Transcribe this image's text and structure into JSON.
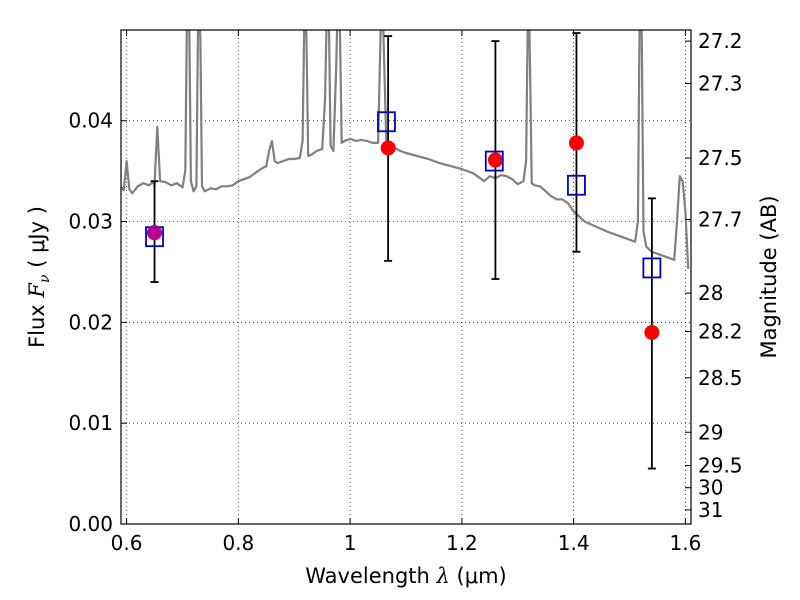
{
  "chart_data": {
    "type": "scatter",
    "xlabel": {
      "prefix": "Wavelength",
      "symbol": "λ",
      "unit": "(μm)"
    },
    "ylabel": {
      "prefix": "Flux",
      "symbol": "F",
      "subscript": "ν",
      "unit": "( μJy )"
    },
    "y2label": "Magnitude (AB)",
    "xlim": [
      0.59,
      1.61
    ],
    "ylim": [
      0.0,
      0.049
    ],
    "xticks": [
      {
        "value": 0.6,
        "label": "0.6"
      },
      {
        "value": 0.8,
        "label": "0.8"
      },
      {
        "value": 1.0,
        "label": "1"
      },
      {
        "value": 1.2,
        "label": "1.2"
      },
      {
        "value": 1.4,
        "label": "1.4"
      },
      {
        "value": 1.6,
        "label": "1.6"
      }
    ],
    "yticks": [
      {
        "value": 0.0,
        "label": "0.00"
      },
      {
        "value": 0.01,
        "label": "0.01"
      },
      {
        "value": 0.02,
        "label": "0.02"
      },
      {
        "value": 0.03,
        "label": "0.03"
      },
      {
        "value": 0.04,
        "label": "0.04"
      }
    ],
    "magnitude_ticks": [
      {
        "flux": 0.0479,
        "label": "27.2"
      },
      {
        "flux": 0.0437,
        "label": "27.3"
      },
      {
        "flux": 0.0363,
        "label": "27.5"
      },
      {
        "flux": 0.0302,
        "label": "27.7"
      },
      {
        "flux": 0.0229,
        "label": "28"
      },
      {
        "flux": 0.0191,
        "label": "28.2"
      },
      {
        "flux": 0.0145,
        "label": "28.5"
      },
      {
        "flux": 0.0091,
        "label": "29"
      },
      {
        "flux": 0.0058,
        "label": "29.5"
      },
      {
        "flux": 0.0036,
        "label": "30"
      },
      {
        "flux": 0.0014,
        "label": "31"
      }
    ],
    "grid": true,
    "series": [
      {
        "kind": "spectrum",
        "color": "#808080",
        "x": [
          0.59,
          0.595,
          0.6,
          0.605,
          0.61,
          0.62,
          0.63,
          0.64,
          0.645,
          0.648,
          0.65,
          0.652,
          0.655,
          0.66,
          0.67,
          0.68,
          0.69,
          0.7,
          0.705,
          0.708,
          0.71,
          0.712,
          0.715,
          0.72,
          0.725,
          0.728,
          0.73,
          0.732,
          0.735,
          0.74,
          0.75,
          0.76,
          0.77,
          0.78,
          0.79,
          0.8,
          0.81,
          0.82,
          0.83,
          0.84,
          0.85,
          0.855,
          0.86,
          0.865,
          0.87,
          0.88,
          0.89,
          0.9,
          0.91,
          0.915,
          0.918,
          0.92,
          0.922,
          0.925,
          0.93,
          0.94,
          0.95,
          0.955,
          0.958,
          0.96,
          0.962,
          0.965,
          0.97,
          0.975,
          0.978,
          0.98,
          0.982,
          0.985,
          0.99,
          1.0,
          1.01,
          1.02,
          1.03,
          1.04,
          1.05,
          1.055,
          1.058,
          1.06,
          1.065,
          1.07,
          1.08,
          1.09,
          1.1,
          1.12,
          1.14,
          1.16,
          1.18,
          1.2,
          1.22,
          1.24,
          1.25,
          1.26,
          1.27,
          1.28,
          1.29,
          1.3,
          1.31,
          1.315,
          1.318,
          1.32,
          1.322,
          1.325,
          1.33,
          1.34,
          1.35,
          1.36,
          1.37,
          1.38,
          1.39,
          1.4,
          1.42,
          1.44,
          1.46,
          1.48,
          1.5,
          1.51,
          1.515,
          1.518,
          1.52,
          1.522,
          1.525,
          1.53,
          1.54,
          1.55,
          1.56,
          1.57,
          1.58,
          1.585,
          1.59,
          1.595,
          1.6,
          1.605
        ],
        "y": [
          0.0334,
          0.0331,
          0.036,
          0.0332,
          0.0328,
          0.0335,
          0.0338,
          0.0336,
          0.0338,
          0.034,
          0.0335,
          0.036,
          0.0394,
          0.034,
          0.0339,
          0.0336,
          0.0338,
          0.0334,
          0.035,
          0.05,
          0.052,
          0.05,
          0.034,
          0.033,
          0.0335,
          0.05,
          0.052,
          0.048,
          0.0335,
          0.033,
          0.0333,
          0.0332,
          0.0335,
          0.0335,
          0.0336,
          0.034,
          0.0342,
          0.0344,
          0.0348,
          0.0352,
          0.0355,
          0.037,
          0.038,
          0.036,
          0.0358,
          0.036,
          0.0362,
          0.0362,
          0.0363,
          0.038,
          0.05,
          0.052,
          0.048,
          0.0365,
          0.0366,
          0.037,
          0.0372,
          0.042,
          0.05,
          0.052,
          0.05,
          0.0375,
          0.037,
          0.045,
          0.052,
          0.053,
          0.048,
          0.0378,
          0.038,
          0.0382,
          0.038,
          0.0381,
          0.038,
          0.0378,
          0.0378,
          0.05,
          0.052,
          0.048,
          0.0376,
          0.0375,
          0.0373,
          0.037,
          0.0368,
          0.0365,
          0.0362,
          0.0358,
          0.0355,
          0.0352,
          0.0348,
          0.034,
          0.0345,
          0.0343,
          0.0346,
          0.0345,
          0.0342,
          0.0337,
          0.034,
          0.036,
          0.05,
          0.052,
          0.045,
          0.0338,
          0.0336,
          0.0335,
          0.033,
          0.0325,
          0.0322,
          0.0322,
          0.0318,
          0.031,
          0.03,
          0.0295,
          0.029,
          0.0286,
          0.0282,
          0.028,
          0.03,
          0.05,
          0.052,
          0.048,
          0.029,
          0.0275,
          0.027,
          0.0268,
          0.0266,
          0.0264,
          0.0262,
          0.03,
          0.0345,
          0.034,
          0.031,
          0.0253
        ]
      },
      {
        "kind": "observed",
        "marker": "circle",
        "color": "#ff0000",
        "x": [
          0.65,
          1.068,
          1.26,
          1.405,
          1.54
        ],
        "y": [
          0.0289,
          0.0373,
          0.0361,
          0.0378,
          0.019
        ]
      },
      {
        "kind": "errorbars",
        "color": "#000000",
        "x": [
          0.65,
          1.068,
          1.26,
          1.405,
          1.54
        ],
        "low": [
          0.024,
          0.0261,
          0.0243,
          0.027,
          0.0055
        ],
        "high": [
          0.034,
          0.0484,
          0.0479,
          0.0487,
          0.0323
        ]
      },
      {
        "kind": "model",
        "marker": "square",
        "color": "#0000cc",
        "x": [
          0.65,
          1.065,
          1.258,
          1.405,
          1.54
        ],
        "y": [
          0.0285,
          0.0399,
          0.036,
          0.0336,
          0.0254
        ]
      }
    ]
  }
}
